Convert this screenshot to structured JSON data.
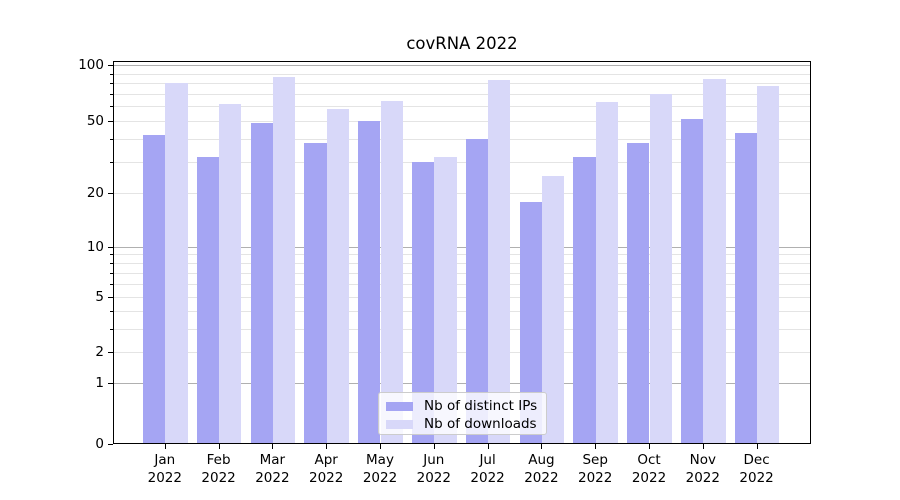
{
  "title": "covRNA 2022",
  "chart_data": {
    "type": "bar",
    "title": "covRNA 2022",
    "categories": [
      "Jan 2022",
      "Feb 2022",
      "Mar 2022",
      "Apr 2022",
      "May 2022",
      "Jun 2022",
      "Jul 2022",
      "Aug 2022",
      "Sep 2022",
      "Oct 2022",
      "Nov 2022",
      "Dec 2022"
    ],
    "series": [
      {
        "name": "Nb of distinct IPs",
        "color": "#a5a5f3",
        "values": [
          42,
          32,
          49,
          38,
          50,
          30,
          40,
          18,
          32,
          38,
          51,
          43
        ]
      },
      {
        "name": "Nb of downloads",
        "color": "#d8d8f9",
        "values": [
          80,
          62,
          86,
          58,
          64,
          32,
          83,
          25,
          63,
          70,
          84,
          77
        ]
      }
    ],
    "yscale": "symlog",
    "y_ticks": [
      0,
      1,
      2,
      5,
      10,
      20,
      50,
      100
    ],
    "y_minor_ticks": [
      3,
      4,
      6,
      7,
      8,
      9,
      30,
      40,
      60,
      70,
      80,
      90
    ],
    "ylim": [
      0,
      107
    ],
    "xlabel": "",
    "ylabel": "",
    "grid": "both",
    "legend_position": "lower center"
  },
  "colors": {
    "background": "#ffffff",
    "spine": "#000000",
    "grid_major": "#b0b0b0",
    "grid_minor": "#e4e4e4",
    "text": "#000000",
    "legend_border": "#cccccc",
    "legend_background": "rgba(255,255,255,0.8)"
  }
}
